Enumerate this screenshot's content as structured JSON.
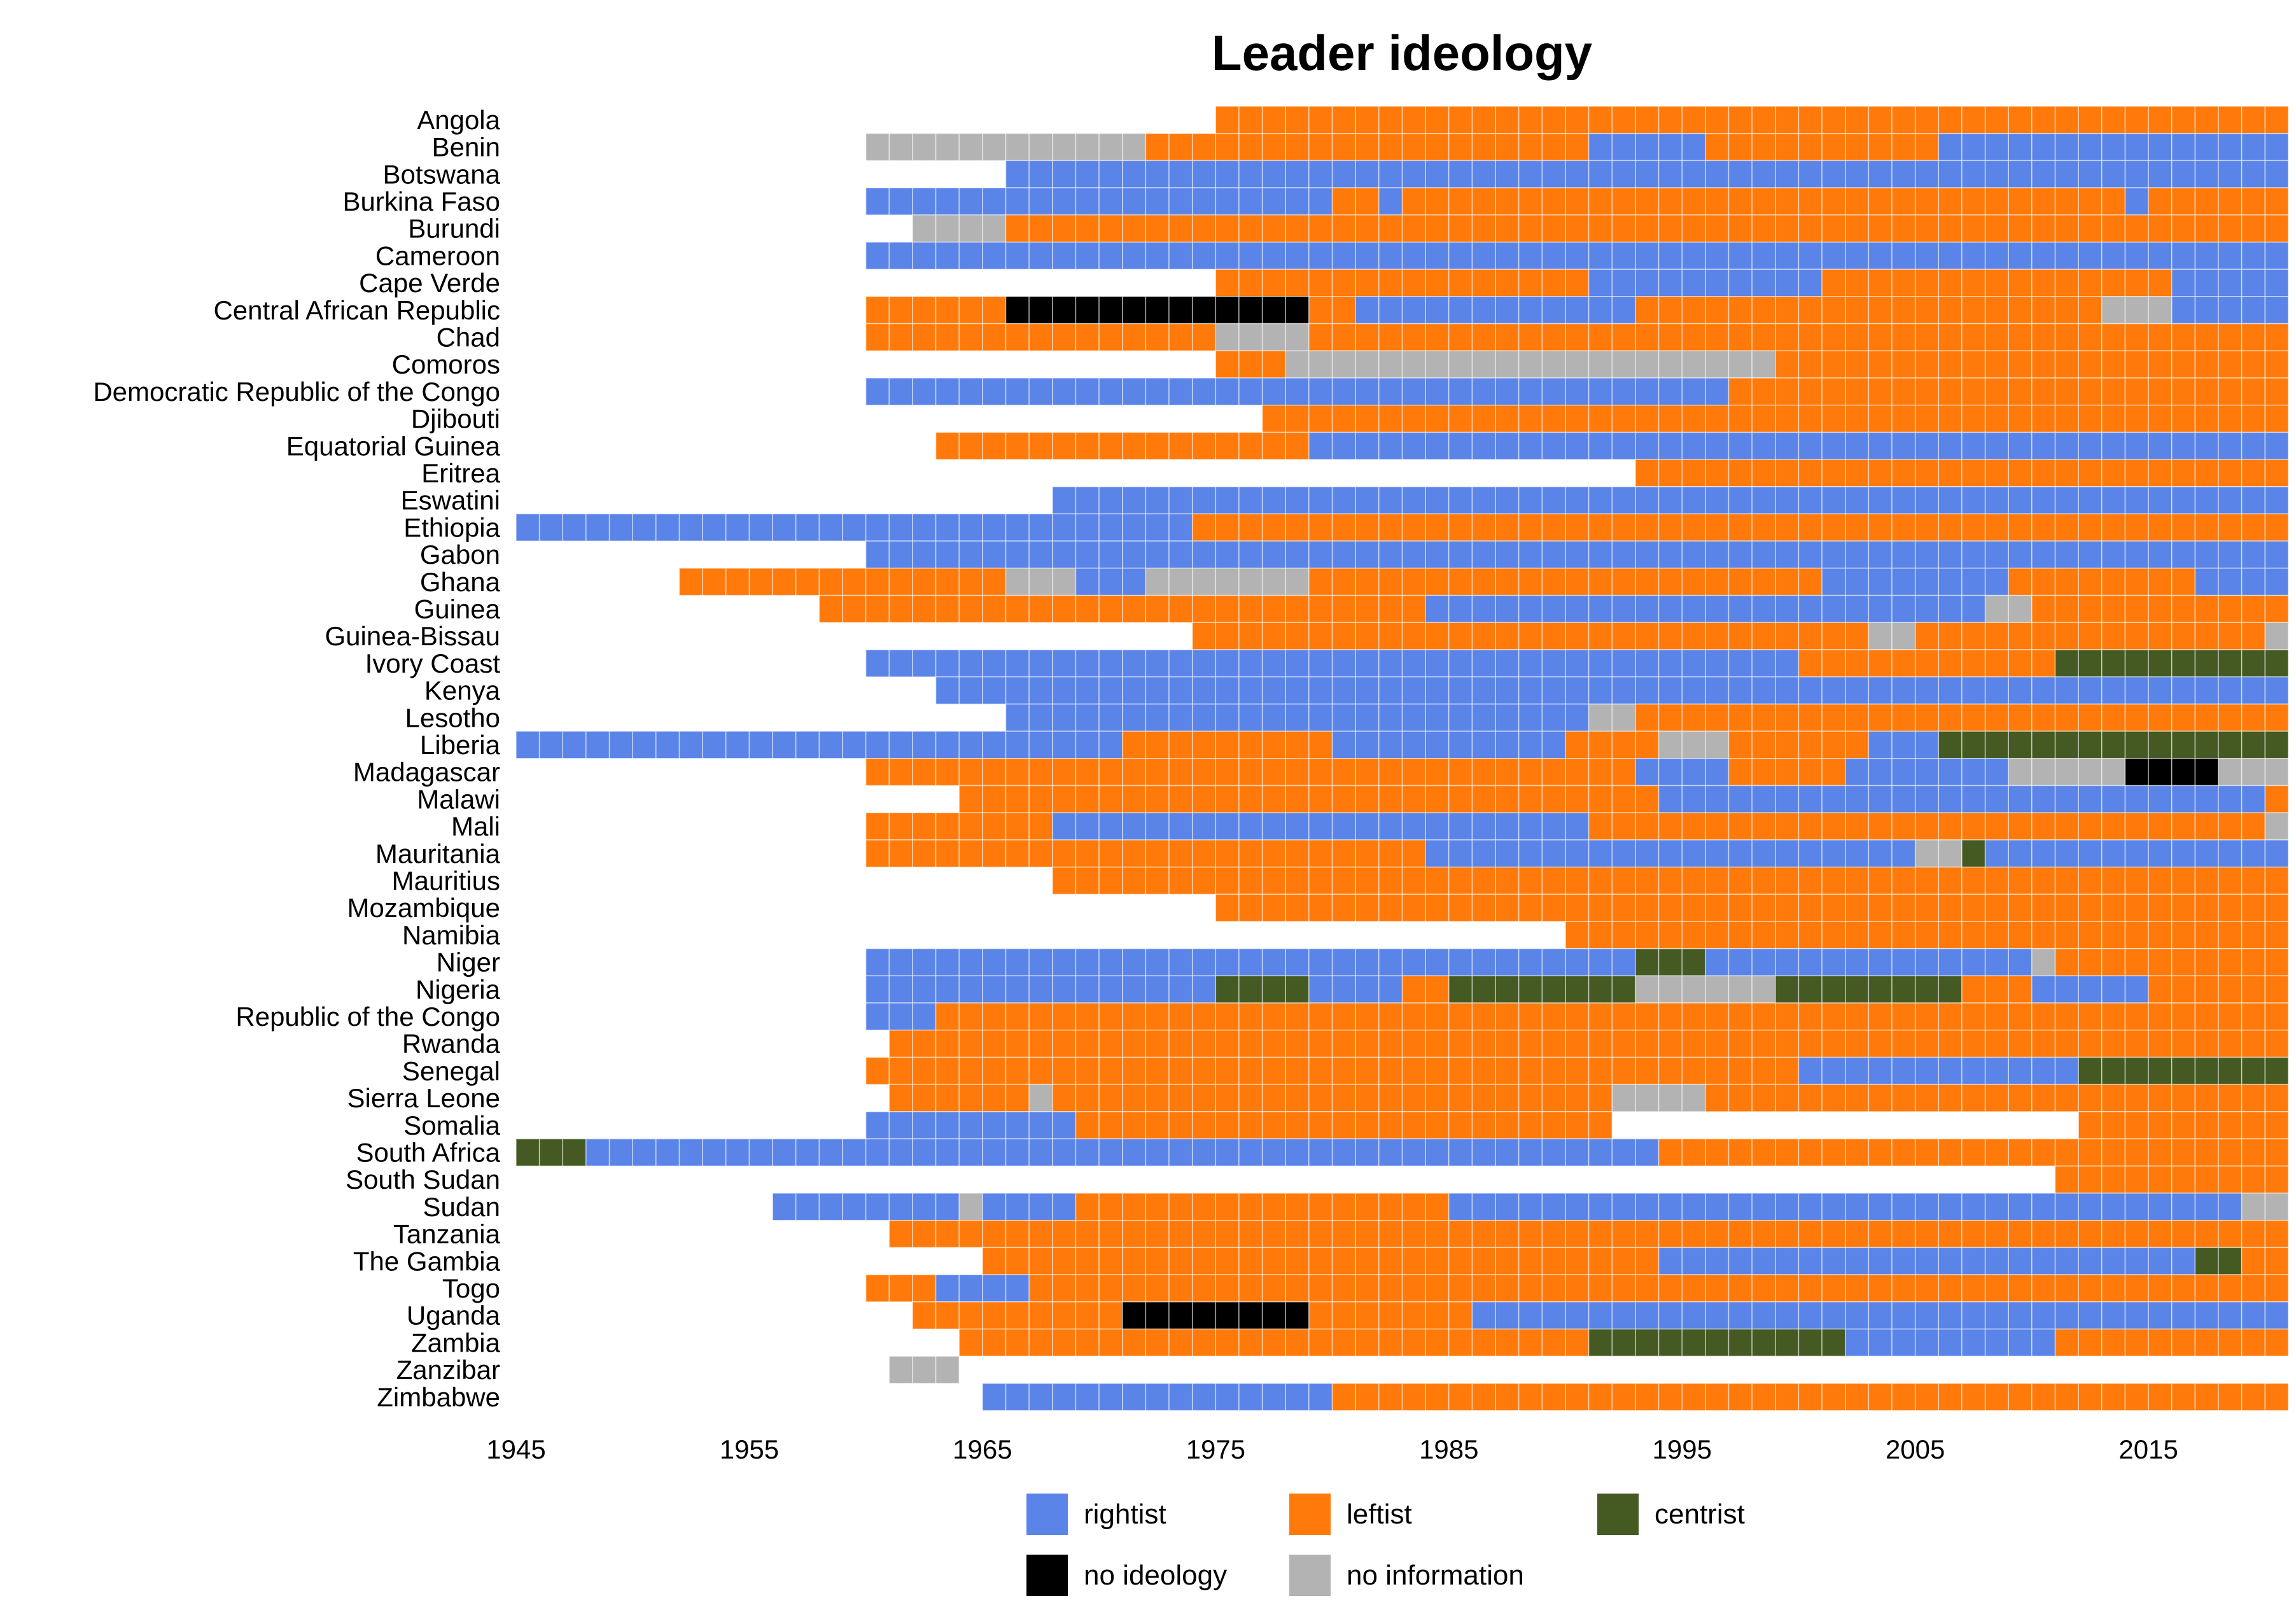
{
  "chart_data": {
    "type": "heatmap",
    "title": "Leader ideology",
    "xlabel": "",
    "ylabel": "",
    "xlim": [
      1945,
      2020
    ],
    "x_ticks": [
      1945,
      1955,
      1965,
      1975,
      1985,
      1995,
      2005,
      2015
    ],
    "grid": false,
    "legend_position": "bottom",
    "categories_info": [
      {
        "key": "R",
        "label": "rightist",
        "color": "#5A84E8"
      },
      {
        "key": "L",
        "label": "leftist",
        "color": "#FF7A0A"
      },
      {
        "key": "C",
        "label": "centrist",
        "color": "#445A22"
      },
      {
        "key": "N",
        "label": "no ideology",
        "color": "#000000"
      },
      {
        "key": "I",
        "label": "no information",
        "color": "#B3B3B3"
      }
    ],
    "note_segments": "Each country lists [start_year, end_year_inclusive, category_key] segments",
    "countries": [
      {
        "name": "Angola",
        "segments": [
          [
            1975,
            2020,
            "L"
          ]
        ]
      },
      {
        "name": "Benin",
        "segments": [
          [
            1960,
            1971,
            "I"
          ],
          [
            1972,
            1990,
            "L"
          ],
          [
            1991,
            1995,
            "R"
          ],
          [
            1996,
            2005,
            "L"
          ],
          [
            2006,
            2020,
            "R"
          ]
        ]
      },
      {
        "name": "Botswana",
        "segments": [
          [
            1966,
            2020,
            "R"
          ]
        ]
      },
      {
        "name": "Burkina Faso",
        "segments": [
          [
            1960,
            1979,
            "R"
          ],
          [
            1980,
            1981,
            "L"
          ],
          [
            1982,
            1982,
            "R"
          ],
          [
            1983,
            2013,
            "L"
          ],
          [
            2014,
            2014,
            "R"
          ],
          [
            2015,
            2020,
            "L"
          ]
        ]
      },
      {
        "name": "Burundi",
        "segments": [
          [
            1962,
            1965,
            "I"
          ],
          [
            1966,
            2020,
            "L"
          ]
        ]
      },
      {
        "name": "Cameroon",
        "segments": [
          [
            1960,
            2020,
            "R"
          ]
        ]
      },
      {
        "name": "Cape Verde",
        "segments": [
          [
            1975,
            1990,
            "L"
          ],
          [
            1991,
            2000,
            "R"
          ],
          [
            2001,
            2015,
            "L"
          ],
          [
            2016,
            2020,
            "R"
          ]
        ]
      },
      {
        "name": "Central African Republic",
        "segments": [
          [
            1960,
            1965,
            "L"
          ],
          [
            1966,
            1978,
            "N"
          ],
          [
            1979,
            1980,
            "L"
          ],
          [
            1981,
            1992,
            "R"
          ],
          [
            1993,
            2012,
            "L"
          ],
          [
            2013,
            2015,
            "I"
          ],
          [
            2016,
            2020,
            "R"
          ]
        ]
      },
      {
        "name": "Chad",
        "segments": [
          [
            1960,
            1974,
            "L"
          ],
          [
            1975,
            1978,
            "I"
          ],
          [
            1979,
            2020,
            "L"
          ]
        ]
      },
      {
        "name": "Comoros",
        "segments": [
          [
            1975,
            1977,
            "L"
          ],
          [
            1978,
            1998,
            "I"
          ],
          [
            1999,
            2020,
            "L"
          ]
        ]
      },
      {
        "name": "Democratic Republic of the Congo",
        "segments": [
          [
            1960,
            1996,
            "R"
          ],
          [
            1997,
            2020,
            "L"
          ]
        ]
      },
      {
        "name": "Djibouti",
        "segments": [
          [
            1977,
            2020,
            "L"
          ]
        ]
      },
      {
        "name": "Equatorial Guinea",
        "segments": [
          [
            1963,
            1978,
            "L"
          ],
          [
            1979,
            2020,
            "R"
          ]
        ]
      },
      {
        "name": "Eritrea",
        "segments": [
          [
            1993,
            2020,
            "L"
          ]
        ]
      },
      {
        "name": "Eswatini",
        "segments": [
          [
            1968,
            2020,
            "R"
          ]
        ]
      },
      {
        "name": "Ethiopia",
        "segments": [
          [
            1945,
            1973,
            "R"
          ],
          [
            1974,
            2020,
            "L"
          ]
        ]
      },
      {
        "name": "Gabon",
        "segments": [
          [
            1960,
            2020,
            "R"
          ]
        ]
      },
      {
        "name": "Ghana",
        "segments": [
          [
            1952,
            1965,
            "L"
          ],
          [
            1966,
            1968,
            "I"
          ],
          [
            1969,
            1971,
            "R"
          ],
          [
            1972,
            1978,
            "I"
          ],
          [
            1979,
            2000,
            "L"
          ],
          [
            2001,
            2008,
            "R"
          ],
          [
            2009,
            2016,
            "L"
          ],
          [
            2017,
            2020,
            "R"
          ]
        ]
      },
      {
        "name": "Guinea",
        "segments": [
          [
            1958,
            1983,
            "L"
          ],
          [
            1984,
            2007,
            "R"
          ],
          [
            2008,
            2009,
            "I"
          ],
          [
            2010,
            2020,
            "L"
          ]
        ]
      },
      {
        "name": "Guinea-Bissau",
        "segments": [
          [
            1974,
            2002,
            "L"
          ],
          [
            2003,
            2004,
            "I"
          ],
          [
            2005,
            2019,
            "L"
          ],
          [
            2020,
            2020,
            "I"
          ]
        ]
      },
      {
        "name": "Ivory Coast",
        "segments": [
          [
            1960,
            1999,
            "R"
          ],
          [
            2000,
            2010,
            "L"
          ],
          [
            2011,
            2020,
            "C"
          ]
        ]
      },
      {
        "name": "Kenya",
        "segments": [
          [
            1963,
            2020,
            "R"
          ]
        ]
      },
      {
        "name": "Lesotho",
        "segments": [
          [
            1966,
            1990,
            "R"
          ],
          [
            1991,
            1992,
            "I"
          ],
          [
            1993,
            2020,
            "L"
          ]
        ]
      },
      {
        "name": "Liberia",
        "segments": [
          [
            1945,
            1970,
            "R"
          ],
          [
            1971,
            1979,
            "L"
          ],
          [
            1980,
            1989,
            "R"
          ],
          [
            1990,
            1993,
            "L"
          ],
          [
            1994,
            1996,
            "I"
          ],
          [
            1997,
            2002,
            "L"
          ],
          [
            2003,
            2005,
            "R"
          ],
          [
            2006,
            2020,
            "C"
          ]
        ]
      },
      {
        "name": "Madagascar",
        "segments": [
          [
            1960,
            1992,
            "L"
          ],
          [
            1993,
            1996,
            "R"
          ],
          [
            1997,
            2001,
            "L"
          ],
          [
            2002,
            2008,
            "R"
          ],
          [
            2009,
            2013,
            "I"
          ],
          [
            2014,
            2017,
            "N"
          ],
          [
            2018,
            2020,
            "I"
          ]
        ]
      },
      {
        "name": "Malawi",
        "segments": [
          [
            1964,
            1993,
            "L"
          ],
          [
            1994,
            2019,
            "R"
          ],
          [
            2020,
            2020,
            "L"
          ]
        ]
      },
      {
        "name": "Mali",
        "segments": [
          [
            1960,
            1967,
            "L"
          ],
          [
            1968,
            1990,
            "R"
          ],
          [
            1991,
            2019,
            "L"
          ],
          [
            2020,
            2020,
            "I"
          ]
        ]
      },
      {
        "name": "Mauritania",
        "segments": [
          [
            1960,
            1983,
            "L"
          ],
          [
            1984,
            2004,
            "R"
          ],
          [
            2005,
            2006,
            "I"
          ],
          [
            2007,
            2007,
            "C"
          ],
          [
            2008,
            2020,
            "R"
          ]
        ]
      },
      {
        "name": "Mauritius",
        "segments": [
          [
            1968,
            2020,
            "L"
          ]
        ]
      },
      {
        "name": "Mozambique",
        "segments": [
          [
            1975,
            2020,
            "L"
          ]
        ]
      },
      {
        "name": "Namibia",
        "segments": [
          [
            1990,
            2020,
            "L"
          ]
        ]
      },
      {
        "name": "Niger",
        "segments": [
          [
            1960,
            1992,
            "R"
          ],
          [
            1993,
            1995,
            "C"
          ],
          [
            1996,
            2009,
            "R"
          ],
          [
            2010,
            2010,
            "I"
          ],
          [
            2011,
            2020,
            "L"
          ]
        ]
      },
      {
        "name": "Nigeria",
        "segments": [
          [
            1960,
            1974,
            "R"
          ],
          [
            1975,
            1978,
            "C"
          ],
          [
            1979,
            1982,
            "R"
          ],
          [
            1983,
            1984,
            "L"
          ],
          [
            1985,
            1992,
            "C"
          ],
          [
            1993,
            1998,
            "I"
          ],
          [
            1999,
            2006,
            "C"
          ],
          [
            2007,
            2009,
            "L"
          ],
          [
            2010,
            2014,
            "R"
          ],
          [
            2015,
            2020,
            "L"
          ]
        ]
      },
      {
        "name": "Republic of the Congo",
        "segments": [
          [
            1960,
            1962,
            "R"
          ],
          [
            1963,
            2020,
            "L"
          ]
        ]
      },
      {
        "name": "Rwanda",
        "segments": [
          [
            1961,
            2020,
            "L"
          ]
        ]
      },
      {
        "name": "Senegal",
        "segments": [
          [
            1960,
            1999,
            "L"
          ],
          [
            2000,
            2011,
            "R"
          ],
          [
            2012,
            2020,
            "C"
          ]
        ]
      },
      {
        "name": "Sierra Leone",
        "segments": [
          [
            1961,
            1966,
            "L"
          ],
          [
            1967,
            1967,
            "I"
          ],
          [
            1968,
            1991,
            "L"
          ],
          [
            1992,
            1995,
            "I"
          ],
          [
            1996,
            2020,
            "L"
          ]
        ]
      },
      {
        "name": "Somalia",
        "segments": [
          [
            1960,
            1968,
            "R"
          ],
          [
            1969,
            1991,
            "L"
          ],
          [
            2012,
            2020,
            "L"
          ]
        ]
      },
      {
        "name": "South Africa",
        "segments": [
          [
            1945,
            1947,
            "C"
          ],
          [
            1948,
            1993,
            "R"
          ],
          [
            1994,
            2020,
            "L"
          ]
        ]
      },
      {
        "name": "South Sudan",
        "segments": [
          [
            2011,
            2020,
            "L"
          ]
        ]
      },
      {
        "name": "Sudan",
        "segments": [
          [
            1956,
            1963,
            "R"
          ],
          [
            1964,
            1964,
            "I"
          ],
          [
            1965,
            1968,
            "R"
          ],
          [
            1969,
            1984,
            "L"
          ],
          [
            1985,
            2018,
            "R"
          ],
          [
            2019,
            2020,
            "I"
          ]
        ]
      },
      {
        "name": "Tanzania",
        "segments": [
          [
            1961,
            2020,
            "L"
          ]
        ]
      },
      {
        "name": "The Gambia",
        "segments": [
          [
            1965,
            1993,
            "L"
          ],
          [
            1994,
            2016,
            "R"
          ],
          [
            2017,
            2018,
            "C"
          ],
          [
            2019,
            2020,
            "L"
          ]
        ]
      },
      {
        "name": "Togo",
        "segments": [
          [
            1960,
            1962,
            "L"
          ],
          [
            1963,
            1966,
            "R"
          ],
          [
            1967,
            2020,
            "L"
          ]
        ]
      },
      {
        "name": "Uganda",
        "segments": [
          [
            1962,
            1970,
            "L"
          ],
          [
            1971,
            1978,
            "N"
          ],
          [
            1979,
            1985,
            "L"
          ],
          [
            1986,
            2020,
            "R"
          ]
        ]
      },
      {
        "name": "Zambia",
        "segments": [
          [
            1964,
            1990,
            "L"
          ],
          [
            1991,
            2001,
            "C"
          ],
          [
            2002,
            2010,
            "R"
          ],
          [
            2011,
            2020,
            "L"
          ]
        ]
      },
      {
        "name": "Zanzibar",
        "segments": [
          [
            1961,
            1963,
            "I"
          ]
        ]
      },
      {
        "name": "Zimbabwe",
        "segments": [
          [
            1965,
            1979,
            "R"
          ],
          [
            1980,
            2020,
            "L"
          ]
        ]
      }
    ]
  }
}
